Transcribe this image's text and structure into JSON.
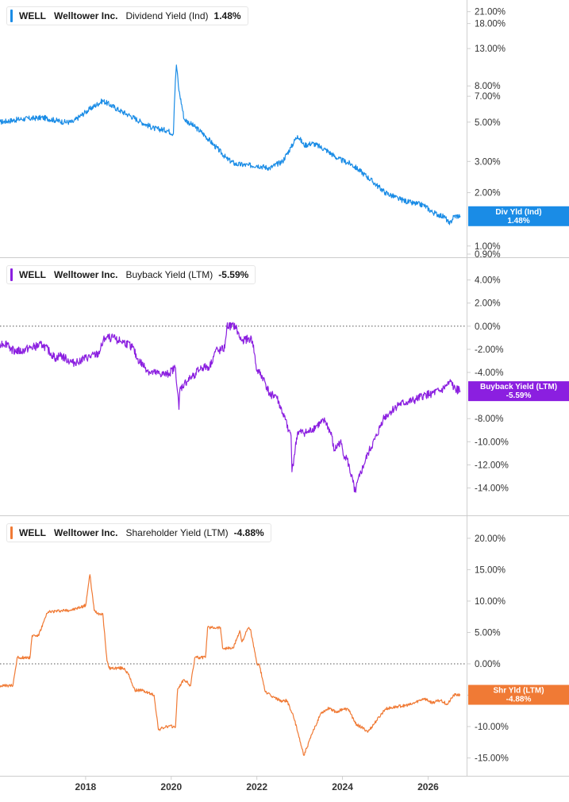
{
  "colors": {
    "dividend": "#1a8ce6",
    "buyback": "#8b1fe0",
    "shareholder": "#f07a35",
    "axis_text": "#333333",
    "divider": "#cccccc"
  },
  "chart_data": [
    {
      "type": "line",
      "ticker": "WELL",
      "company": "Welltower Inc.",
      "metric": "Dividend Yield (Ind)",
      "value_label": "1.48%",
      "tag_line1": "Div Yld (Ind)",
      "tag_line2": "1.48%",
      "yscale": "log",
      "ylim": [
        0.9,
        22.5
      ],
      "yticks": [
        21,
        18,
        13,
        8,
        7,
        5,
        3,
        2,
        1,
        0.9
      ],
      "ytick_labels": [
        "21.00%",
        "18.00%",
        "13.00%",
        "8.00%",
        "7.00%",
        "5.00%",
        "3.00%",
        "2.00%",
        "1.00%",
        "0.90%"
      ],
      "zero_line": false,
      "series": [
        {
          "x": [
            2016.0,
            2016.5,
            2017.0,
            2017.5,
            2017.7,
            2018.0,
            2018.4,
            2018.8,
            2019.0,
            2019.3,
            2019.6,
            2019.9,
            2020.05,
            2020.12,
            2020.18,
            2020.3,
            2020.45,
            2020.7,
            2021.0,
            2021.3,
            2021.5,
            2021.8,
            2022.0,
            2022.3,
            2022.6,
            2022.8,
            2022.95,
            2023.1,
            2023.3,
            2023.6,
            2023.9,
            2024.2,
            2024.5,
            2024.8,
            2025.0,
            2025.3,
            2025.6,
            2025.9,
            2026.1,
            2026.4,
            2026.5,
            2026.6,
            2026.75
          ],
          "values": [
            5.0,
            5.2,
            5.3,
            5.0,
            5.0,
            5.7,
            6.6,
            5.8,
            5.5,
            5.0,
            4.6,
            4.5,
            4.3,
            10.5,
            7.5,
            5.2,
            4.9,
            4.4,
            3.7,
            3.1,
            2.9,
            2.85,
            2.85,
            2.75,
            3.0,
            3.6,
            4.2,
            3.7,
            3.8,
            3.5,
            3.1,
            2.9,
            2.55,
            2.2,
            2.0,
            1.85,
            1.75,
            1.7,
            1.55,
            1.45,
            1.32,
            1.47,
            1.48
          ]
        }
      ]
    },
    {
      "type": "line",
      "ticker": "WELL",
      "company": "Welltower Inc.",
      "metric": "Buyback Yield (LTM)",
      "value_label": "-5.59%",
      "tag_line1": "Buyback Yield (LTM)",
      "tag_line2": "-5.59%",
      "yscale": "linear",
      "ylim": [
        -15.2,
        5.0
      ],
      "yticks": [
        4,
        2,
        0,
        -2,
        -4,
        -8,
        -10,
        -12,
        -14
      ],
      "ytick_labels": [
        "4.00%",
        "2.00%",
        "0.00%",
        "-2.00%",
        "-4.00%",
        "-8.00%",
        "-10.00%",
        "-12.00%",
        "-14.00%"
      ],
      "zero_line": true,
      "series": [
        {
          "x": [
            2016.0,
            2016.2,
            2016.25,
            2016.5,
            2016.6,
            2017.0,
            2017.3,
            2017.4,
            2017.7,
            2017.9,
            2018.3,
            2018.45,
            2018.6,
            2018.9,
            2019.1,
            2019.2,
            2019.5,
            2019.9,
            2020.1,
            2020.18,
            2020.2,
            2020.3,
            2020.45,
            2020.7,
            2020.9,
            2021.05,
            2021.1,
            2021.25,
            2021.3,
            2021.5,
            2021.6,
            2021.65,
            2021.85,
            2021.9,
            2022.0,
            2022.05,
            2022.15,
            2022.3,
            2022.45,
            2022.6,
            2022.75,
            2022.8,
            2022.82,
            2022.95,
            2023.2,
            2023.4,
            2023.6,
            2023.75,
            2023.8,
            2023.95,
            2024.05,
            2024.1,
            2024.3,
            2024.4,
            2024.5,
            2024.6,
            2024.8,
            2024.95,
            2025.1,
            2025.3,
            2025.5,
            2025.7,
            2025.9,
            2026.1,
            2026.3,
            2026.45,
            2026.55,
            2026.6,
            2026.75
          ],
          "values": [
            -1.5,
            -1.5,
            -2.0,
            -2.2,
            -2.0,
            -1.6,
            -2.8,
            -2.5,
            -3.2,
            -2.9,
            -2.4,
            -1.0,
            -1.0,
            -1.4,
            -1.8,
            -2.8,
            -4.0,
            -4.2,
            -3.6,
            -7.2,
            -5.5,
            -5.0,
            -4.5,
            -3.6,
            -3.5,
            -2.0,
            -2.2,
            -1.9,
            0.0,
            0.0,
            -1.0,
            -1.2,
            -1.1,
            -1.3,
            -3.9,
            -4.0,
            -4.5,
            -5.9,
            -6.0,
            -7.5,
            -9.0,
            -9.5,
            -12.6,
            -9.2,
            -9.2,
            -8.6,
            -8.2,
            -9.5,
            -10.8,
            -10.0,
            -11.3,
            -11.4,
            -14.3,
            -13.0,
            -12.0,
            -11.0,
            -9.5,
            -8.0,
            -7.5,
            -6.8,
            -6.6,
            -6.4,
            -6.0,
            -5.8,
            -5.6,
            -5.1,
            -4.8,
            -5.4,
            -5.59
          ]
        }
      ]
    },
    {
      "type": "line",
      "ticker": "WELL",
      "company": "Welltower Inc.",
      "metric": "Shareholder Yield (LTM)",
      "value_label": "-4.88%",
      "tag_line1": "Shr Yld (LTM)",
      "tag_line2": "-4.88%",
      "yscale": "linear",
      "ylim": [
        -16.2,
        21.0
      ],
      "yticks": [
        20,
        15,
        10,
        5,
        0,
        -5,
        -10,
        -15
      ],
      "ytick_labels": [
        "20.00%",
        "15.00%",
        "10.00%",
        "5.00%",
        "0.00%",
        "-5.00%",
        "-10.00%",
        "-15.00%"
      ],
      "zero_line": true,
      "series": [
        {
          "x": [
            2016.0,
            2016.3,
            2016.4,
            2016.7,
            2016.75,
            2016.9,
            2017.1,
            2017.15,
            2017.5,
            2017.7,
            2018.0,
            2018.05,
            2018.1,
            2018.2,
            2018.3,
            2018.4,
            2018.5,
            2018.55,
            2018.9,
            2019.0,
            2019.15,
            2019.3,
            2019.6,
            2019.7,
            2019.9,
            2020.1,
            2020.15,
            2020.3,
            2020.45,
            2020.55,
            2020.8,
            2020.85,
            2021.15,
            2021.2,
            2021.45,
            2021.6,
            2021.65,
            2021.8,
            2021.85,
            2022.0,
            2022.05,
            2022.2,
            2022.35,
            2022.6,
            2022.7,
            2022.8,
            2022.85,
            2022.95,
            2023.1,
            2023.3,
            2023.5,
            2023.7,
            2023.85,
            2024.0,
            2024.15,
            2024.3,
            2024.6,
            2024.8,
            2025.0,
            2025.3,
            2025.6,
            2025.9,
            2026.1,
            2026.3,
            2026.45,
            2026.6,
            2026.75
          ],
          "values": [
            -3.5,
            -3.5,
            1.0,
            1.0,
            4.5,
            4.5,
            8.0,
            8.3,
            8.5,
            8.6,
            9.3,
            11.8,
            14.2,
            8.5,
            8.0,
            8.0,
            0.4,
            -0.7,
            -0.7,
            -1.7,
            -4.2,
            -4.2,
            -5.0,
            -10.5,
            -10.0,
            -10.0,
            -4.0,
            -2.5,
            -3.5,
            1.0,
            1.0,
            5.8,
            5.8,
            2.5,
            2.5,
            5.3,
            3.5,
            5.7,
            5.5,
            0.0,
            0.0,
            -4.5,
            -5.2,
            -6.0,
            -5.8,
            -7.5,
            -8.2,
            -10.8,
            -14.6,
            -11.0,
            -7.8,
            -7.0,
            -7.7,
            -7.2,
            -7.3,
            -9.5,
            -10.8,
            -9.0,
            -7.2,
            -6.8,
            -6.5,
            -5.5,
            -6.2,
            -5.8,
            -6.5,
            -5.0,
            -4.88
          ]
        }
      ]
    }
  ],
  "x_axis": {
    "ticks": [
      2018,
      2020,
      2022,
      2024,
      2026
    ],
    "tick_labels": [
      "2018",
      "2020",
      "2022",
      "2024",
      "2026"
    ]
  }
}
